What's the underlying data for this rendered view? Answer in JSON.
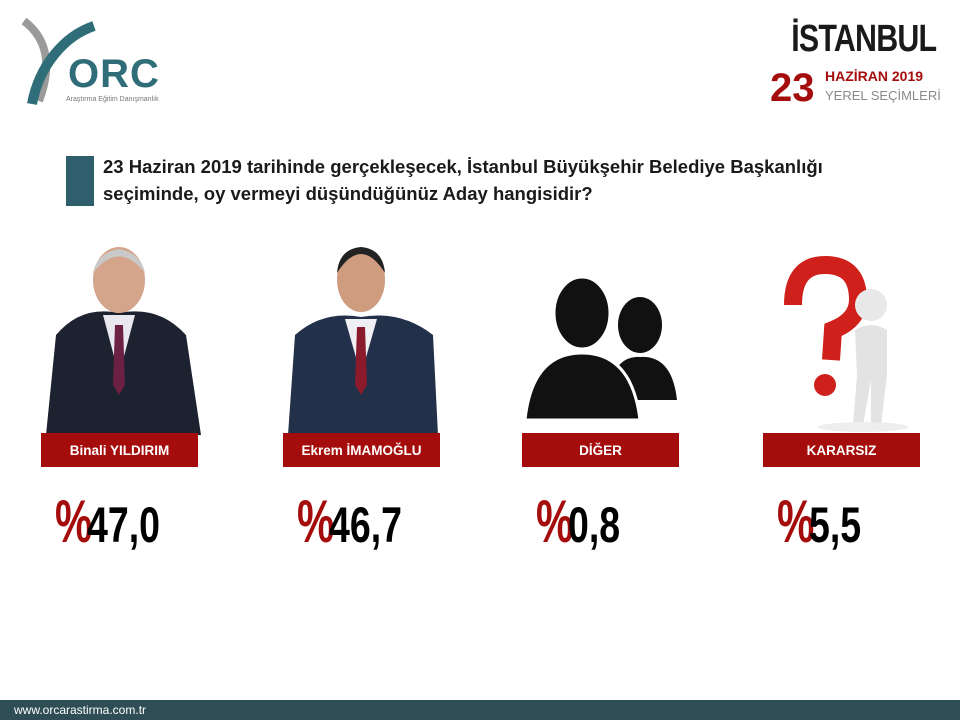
{
  "logo": {
    "text": "ORC",
    "subtitle": "Araştırma Eğitim Danışmanlık"
  },
  "header": {
    "city": "İSTANBUL",
    "day": "23",
    "month_year": "HAZİRAN 2019",
    "event": "YEREL SEÇİMLERİ"
  },
  "question": "23 Haziran 2019 tarihinde gerçekleşecek, İstanbul Büyükşehir Belediye Başkanlığı seçiminde, oy vermeyi düşündüğünüz Aday hangisidir?",
  "percent_symbol": "%",
  "candidates": [
    {
      "name": "Binali YILDIRIM",
      "value": "47,0",
      "image": "candidate-photo"
    },
    {
      "name": "Ekrem İMAMOĞLU",
      "value": "46,7",
      "image": "candidate-photo"
    },
    {
      "name": "DİĞER",
      "value": "0,8",
      "image": "people-silhouette-icon"
    },
    {
      "name": "KARARSIZ",
      "value": "5,5",
      "image": "question-mark-figure-icon"
    }
  ],
  "footer": {
    "website": "www.orcarastirma.com.tr"
  },
  "colors": {
    "accent_red": "#a50d0d",
    "teal": "#2f6e78",
    "footer": "#2e4d55"
  }
}
